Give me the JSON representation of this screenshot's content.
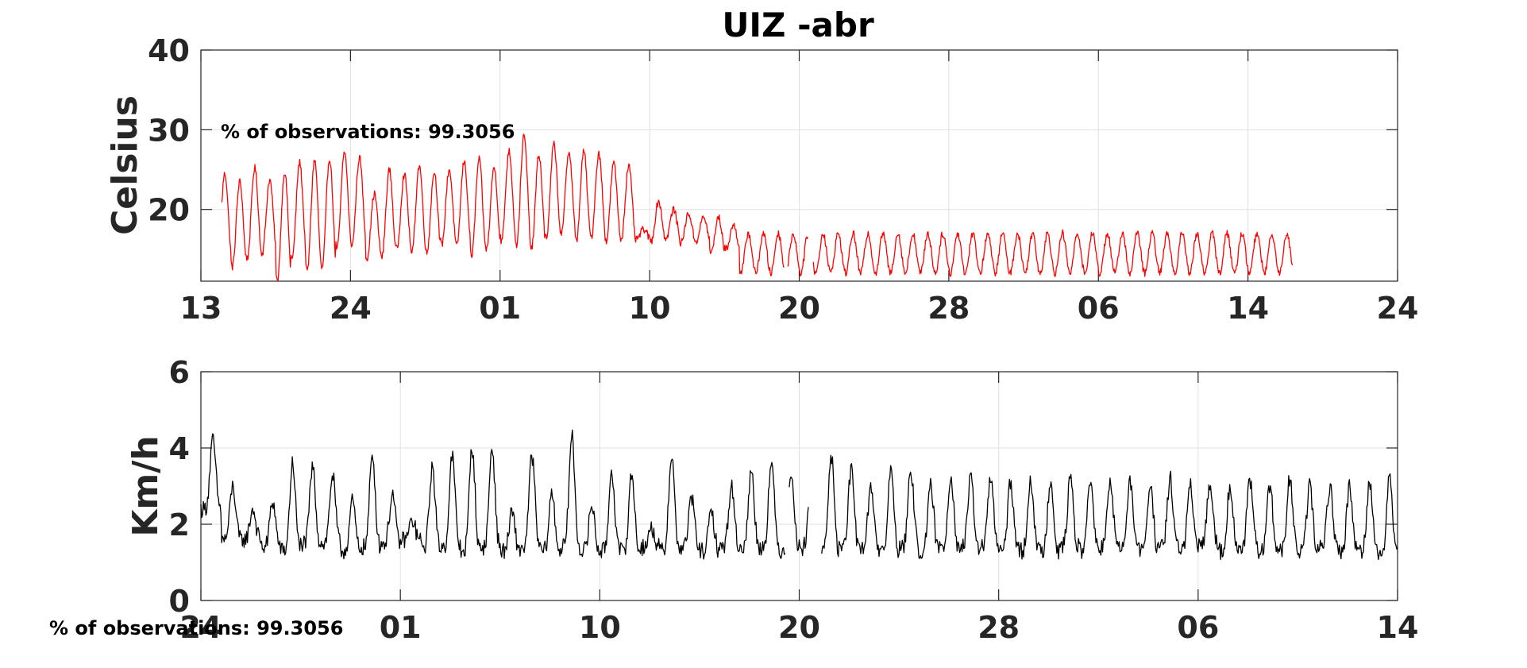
{
  "figure": {
    "title": "UIZ -abr"
  },
  "chart_data": [
    {
      "type": "line",
      "title": "UIZ -abr",
      "ylabel": "Celsius",
      "ylim": [
        11,
        40
      ],
      "yticks": [
        20,
        30,
        40
      ],
      "xlim": [
        0,
        80
      ],
      "xticks": [
        {
          "pos": 0,
          "label": "13"
        },
        {
          "pos": 10,
          "label": "24"
        },
        {
          "pos": 20,
          "label": "01"
        },
        {
          "pos": 30,
          "label": "10"
        },
        {
          "pos": 40,
          "label": "20"
        },
        {
          "pos": 50,
          "label": "28"
        },
        {
          "pos": 60,
          "label": "06"
        },
        {
          "pos": 70,
          "label": "14"
        },
        {
          "pos": 80,
          "label": "24"
        }
      ],
      "grid": true,
      "annotation": "% of observations: 99.3056",
      "series": [
        {
          "color": "#ff0000",
          "daily_profile": {
            "start_day": 1.4,
            "end_day": 73.0,
            "minima": [
              13.5,
              12.8,
              13.8,
              14.5,
              11.0,
              13.8,
              12.2,
              12.5,
              15.0,
              15.5,
              13.8,
              14.0,
              15.0,
              14.5,
              14.5,
              15.5,
              15.3,
              14.2,
              15.0,
              16.0,
              15.5,
              15.0,
              16.5,
              16.8,
              16.0,
              16.5,
              16.0,
              16.2,
              16.2,
              16.0,
              16.3,
              15.8,
              16.0,
              14.5,
              15.0,
              12.0
            ],
            "maxima": [
              24.5,
              23.5,
              25.2,
              23.7,
              24.7,
              25.9,
              26.2,
              26.4,
              27.2,
              26.5,
              22.0,
              25.0,
              24.4,
              25.5,
              24.7,
              25.0,
              26.0,
              26.3,
              25.3,
              27.3,
              29.2,
              26.8,
              28.2,
              27.3,
              27.3,
              27.0,
              25.8,
              25.5,
              17.5,
              21.0,
              20.0,
              19.5,
              19.0,
              19.0,
              18.0,
              17.0
            ],
            "gaps": [
              [
                39.0,
                39.2
              ],
              [
                40.6,
                40.9
              ]
            ]
          }
        }
      ]
    },
    {
      "type": "line",
      "ylabel": "Km/h",
      "ylim": [
        0,
        6
      ],
      "yticks": [
        0,
        2,
        4,
        6
      ],
      "xlim": [
        0,
        60
      ],
      "xticks": [
        {
          "pos": 0,
          "label": "24"
        },
        {
          "pos": 10,
          "label": "01"
        },
        {
          "pos": 20,
          "label": "10"
        },
        {
          "pos": 30,
          "label": "20"
        },
        {
          "pos": 40,
          "label": "28"
        },
        {
          "pos": 50,
          "label": "06"
        },
        {
          "pos": 60,
          "label": "14"
        }
      ],
      "grid": true,
      "annotation": "% of observations: 99.3056",
      "series": [
        {
          "color": "#000000",
          "daily_profile": {
            "start_day": 0.0,
            "end_day": 60.0,
            "minima": [
              2.4,
              1.6,
              1.6,
              1.4,
              1.3,
              1.5,
              1.5,
              1.3,
              1.4,
              1.5,
              1.6,
              1.4,
              1.4,
              1.3,
              1.4,
              1.3,
              1.4,
              1.3,
              1.4,
              1.3,
              1.3,
              1.3,
              1.4,
              1.3,
              1.4,
              1.3,
              1.4,
              1.4,
              1.4,
              1.3,
              1.4,
              1.3,
              1.4,
              1.4,
              1.3,
              1.4,
              1.3,
              1.4,
              1.4,
              1.4,
              1.3,
              1.3,
              1.3,
              1.4,
              1.3,
              1.4,
              1.4,
              1.3,
              1.4,
              1.3,
              1.5,
              1.3,
              1.4,
              1.3,
              1.3,
              1.3,
              1.4,
              1.3,
              1.3,
              1.2,
              1.6
            ],
            "maxima": [
              4.2,
              3.0,
              2.4,
              2.6,
              3.6,
              3.5,
              3.3,
              2.6,
              3.8,
              2.8,
              2.1,
              3.5,
              3.8,
              4.0,
              4.0,
              2.3,
              3.8,
              2.8,
              4.3,
              2.5,
              3.4,
              3.3,
              1.9,
              3.8,
              2.7,
              2.3,
              3.0,
              3.4,
              3.6,
              3.4,
              3.4,
              3.8,
              3.4,
              3.0,
              3.4,
              3.4,
              3.0,
              3.3,
              3.2,
              3.2,
              3.1,
              3.2,
              3.2,
              3.2,
              3.2,
              3.1,
              3.1,
              3.1,
              3.2,
              3.0,
              3.1,
              3.0,
              3.1,
              3.0,
              3.2,
              3.0,
              3.0,
              3.0,
              3.1,
              3.2,
              3.2
            ],
            "gaps": [
              [
                29.3,
                29.5
              ],
              [
                30.5,
                31.1
              ]
            ]
          }
        }
      ]
    }
  ]
}
